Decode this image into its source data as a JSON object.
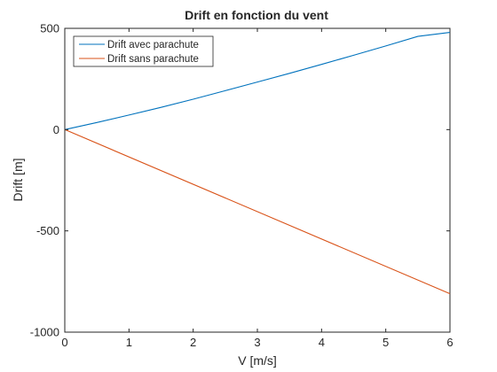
{
  "chart_data": {
    "type": "line",
    "title": "Drift en fonction du vent",
    "xlabel": "V [m/s]",
    "ylabel": "Drift [m]",
    "xlim": [
      0,
      6
    ],
    "ylim": [
      -1000,
      500
    ],
    "xticks": [
      0,
      1,
      2,
      3,
      4,
      5,
      6
    ],
    "xtick_labels": [
      "0",
      "1",
      "2",
      "3",
      "4",
      "5",
      "6"
    ],
    "yticks": [
      -1000,
      -500,
      0,
      500
    ],
    "ytick_labels": [
      "-1000",
      "-500",
      "0",
      "500"
    ],
    "grid": false,
    "legend_position": "top-left",
    "series": [
      {
        "name": "Drift avec parachute",
        "color": "#0072BD",
        "x": [
          0,
          0.5,
          1,
          1.5,
          2,
          2.5,
          3,
          3.5,
          4,
          4.5,
          5,
          5.5,
          6
        ],
        "y": [
          0,
          35,
          72,
          110,
          150,
          192,
          235,
          278,
          322,
          367,
          413,
          460,
          480
        ]
      },
      {
        "name": "Drift sans parachute",
        "color": "#D95319",
        "x": [
          0,
          6
        ],
        "y": [
          0,
          -810
        ]
      }
    ]
  }
}
